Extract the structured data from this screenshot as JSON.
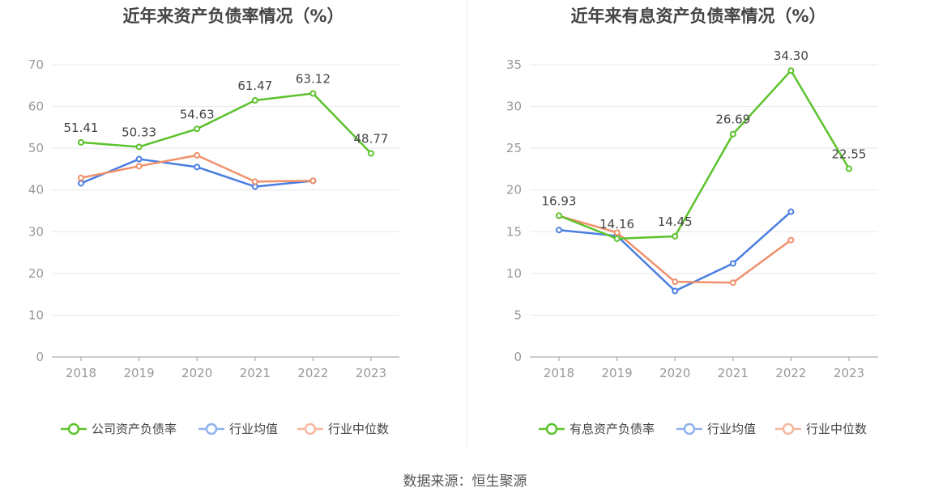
{
  "source": "数据来源：恒生聚源",
  "chart_data": [
    {
      "type": "line",
      "title": "近年来资产负债率情况（%）",
      "x": [
        "2018",
        "2019",
        "2020",
        "2021",
        "2022",
        "2023"
      ],
      "ylim": [
        0,
        70
      ],
      "yticks": [
        0,
        10,
        20,
        30,
        40,
        50,
        60,
        70
      ],
      "grid": true,
      "legend_position": "bottom",
      "series": [
        {
          "name": "公司资产负债率",
          "color": "#5cc22c",
          "values": [
            51.41,
            50.33,
            54.63,
            61.47,
            63.12,
            48.77
          ],
          "labels": [
            "51.41",
            "50.33",
            "54.63",
            "61.47",
            "63.12",
            "48.77"
          ]
        },
        {
          "name": "行业均值",
          "color": "#4a7ee0",
          "values": [
            41.6,
            47.4,
            45.5,
            40.8,
            42.2,
            null
          ]
        },
        {
          "name": "行业中位数",
          "color": "#f0906a",
          "values": [
            42.9,
            45.7,
            48.3,
            42.0,
            42.2,
            null
          ]
        }
      ]
    },
    {
      "type": "line",
      "title": "近年来有息资产负债率情况（%）",
      "x": [
        "2018",
        "2019",
        "2020",
        "2021",
        "2022",
        "2023"
      ],
      "ylim": [
        0,
        35
      ],
      "yticks": [
        0,
        5,
        10,
        15,
        20,
        25,
        30,
        35
      ],
      "grid": true,
      "legend_position": "bottom",
      "series": [
        {
          "name": "有息资产负债率",
          "color": "#5cc22c",
          "values": [
            16.93,
            14.16,
            14.45,
            26.69,
            34.3,
            22.55
          ],
          "labels": [
            "16.93",
            "14.16",
            "14.45",
            "26.69",
            "34.30",
            "22.55"
          ]
        },
        {
          "name": "行业均值",
          "color": "#4a7ee0",
          "values": [
            15.2,
            14.5,
            7.9,
            11.2,
            17.4,
            null
          ]
        },
        {
          "name": "行业中位数",
          "color": "#f0906a",
          "values": [
            16.9,
            14.9,
            9.0,
            8.9,
            14.0,
            null
          ]
        }
      ]
    }
  ]
}
